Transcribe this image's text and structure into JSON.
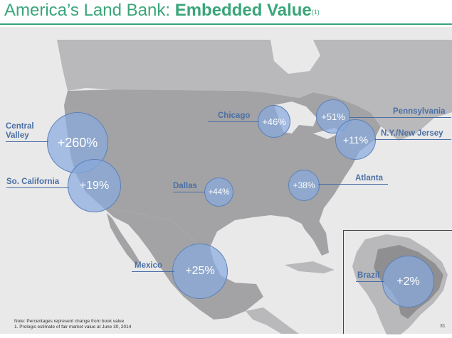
{
  "title": {
    "main": "America’s Land Bank:",
    "emphasis": "Embedded Value",
    "footnote_mark": "(1)"
  },
  "markets": [
    {
      "id": "central-valley",
      "label": "Central\nValley",
      "value": "+260%"
    },
    {
      "id": "so-california",
      "label": "So. California",
      "value": "+19%"
    },
    {
      "id": "dallas",
      "label": "Dallas",
      "value": "+44%"
    },
    {
      "id": "chicago",
      "label": "Chicago",
      "value": "+46%"
    },
    {
      "id": "pennsylvania",
      "label": "Pennsylvania",
      "value": "+51%"
    },
    {
      "id": "ny-new-jersey",
      "label": "N.Y./New Jersey",
      "value": "+11%"
    },
    {
      "id": "atlanta",
      "label": "Atlanta",
      "value": "+38%"
    },
    {
      "id": "mexico",
      "label": "Mexico",
      "value": "+25%"
    },
    {
      "id": "brazil",
      "label": "Brazil",
      "value": "+2%"
    }
  ],
  "notes": {
    "line1": "Note:  Percentages represent change from book value",
    "line2": "1. Prologis estimate of fair market value at June 30, 2014"
  },
  "page_number": "31",
  "colors": {
    "title": "#3aa57a",
    "label": "#4a6fa5",
    "bubble_fill": "#87aade",
    "land": "#a3a3a5",
    "water": "#e9e9ea"
  }
}
